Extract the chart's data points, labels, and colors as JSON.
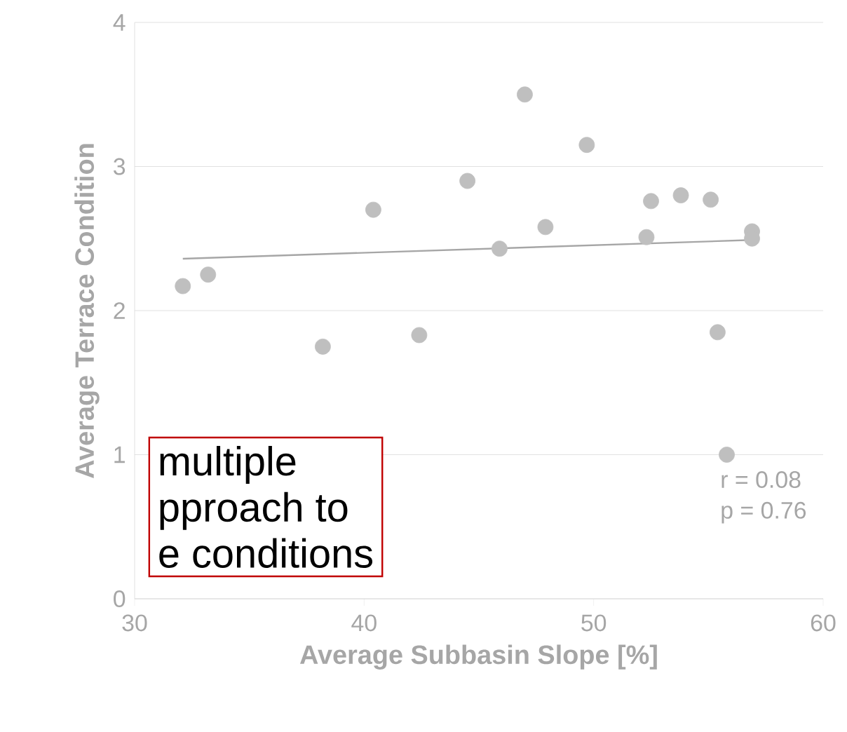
{
  "chart_data": {
    "type": "scatter",
    "xlabel": "Average Subbasin Slope [%]",
    "ylabel": "Average Terrace Condition",
    "xlim": [
      30,
      60
    ],
    "xticks": [
      30,
      40,
      50,
      60
    ],
    "ylim": [
      0,
      4
    ],
    "yticks": [
      0,
      1,
      2,
      3,
      4
    ],
    "grid": "y",
    "marker": "circle",
    "series": [
      {
        "type": "scatter",
        "color": "#bfbfbf",
        "x": [
          47.0,
          49.7,
          44.5,
          52.5,
          53.8,
          55.1,
          56.9,
          56.9,
          47.9,
          45.9,
          52.3,
          40.4,
          42.4,
          38.2,
          55.4,
          55.8,
          33.2,
          32.1
        ],
        "values": [
          3.5,
          3.15,
          2.9,
          2.76,
          2.8,
          2.77,
          2.55,
          2.5,
          2.58,
          2.43,
          2.51,
          2.7,
          1.83,
          1.75,
          1.85,
          1.0,
          2.25,
          2.17
        ]
      },
      {
        "type": "line",
        "marker": "none",
        "color": "#a6a6a6",
        "x": [
          32.1,
          56.9
        ],
        "values": [
          2.36,
          2.49
        ]
      }
    ],
    "annotations": [
      "multiple",
      "pproach to",
      "e conditions",
      "r = 0.08",
      "p = 0.76"
    ]
  }
}
